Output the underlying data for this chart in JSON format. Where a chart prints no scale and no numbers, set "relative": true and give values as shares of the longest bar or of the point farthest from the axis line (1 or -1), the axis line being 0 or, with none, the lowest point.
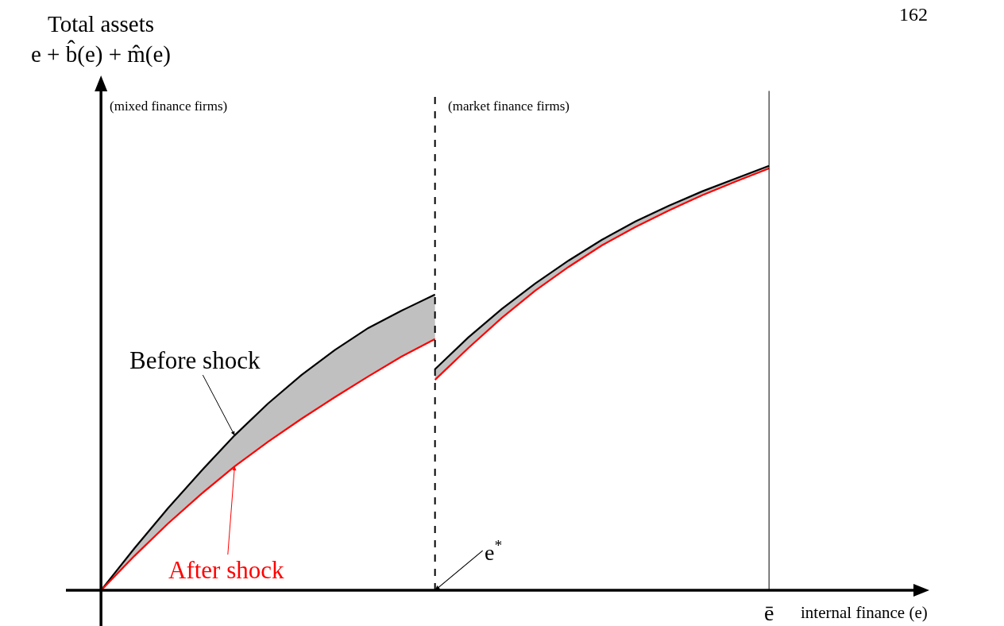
{
  "chart_data": {
    "type": "line",
    "relative": true,
    "ylabel": "Total assets\ne + b̂(e) + m̂(e)",
    "xlabel": "internal finance (e)",
    "categories": [
      null,
      null,
      null,
      null,
      null,
      null,
      null,
      null,
      null,
      null,
      null,
      null,
      null,
      null,
      null,
      null,
      null,
      null,
      null,
      null,
      null
    ],
    "legend": false,
    "marker": "none",
    "line_style": "solid",
    "series": [
      {
        "name": "Before shock",
        "color": "#000000",
        "values": [
          0,
          0.099,
          0.193,
          0.281,
          0.365,
          0.44,
          0.507,
          0.566,
          0.618,
          0.659,
          0.697,
          null,
          null,
          null,
          null,
          null,
          null,
          null,
          null,
          null,
          null
        ],
        "lower": [
          0,
          0.081,
          0.157,
          0.227,
          0.292,
          0.35,
          0.404,
          0.455,
          0.504,
          0.551,
          0.592,
          null,
          null,
          null,
          null,
          null,
          null,
          null,
          null,
          null,
          null
        ],
        "upper": [
          0,
          0.099,
          0.193,
          0.281,
          0.365,
          0.44,
          0.507,
          0.566,
          0.618,
          0.659,
          0.697,
          null,
          null,
          null,
          null,
          null,
          null,
          null,
          null,
          null,
          null
        ]
      },
      {
        "name": "After shock",
        "color": "#ff0000",
        "values": [
          0,
          0.081,
          0.157,
          0.227,
          0.292,
          0.35,
          0.404,
          0.455,
          0.504,
          0.551,
          0.592,
          null,
          null,
          null,
          null,
          null,
          null,
          null,
          null,
          null,
          null
        ]
      },
      {
        "color": "#000000",
        "values": [
          null,
          null,
          null,
          null,
          null,
          null,
          null,
          null,
          null,
          null,
          0.521,
          0.596,
          0.663,
          0.723,
          0.777,
          0.826,
          0.869,
          0.906,
          0.94,
          0.97,
          1
        ],
        "lower": [
          null,
          null,
          null,
          null,
          null,
          null,
          null,
          null,
          null,
          null,
          0.496,
          0.571,
          0.642,
          0.706,
          0.762,
          0.813,
          0.856,
          0.895,
          0.931,
          0.963,
          0.994
        ],
        "upper": [
          null,
          null,
          null,
          null,
          null,
          null,
          null,
          null,
          null,
          null,
          0.521,
          0.596,
          0.663,
          0.723,
          0.777,
          0.826,
          0.869,
          0.906,
          0.94,
          0.97,
          1
        ]
      },
      {
        "color": "#ff0000",
        "values": [
          null,
          null,
          null,
          null,
          null,
          null,
          null,
          null,
          null,
          null,
          0.496,
          0.571,
          0.642,
          0.706,
          0.762,
          0.813,
          0.856,
          0.895,
          0.931,
          0.963,
          0.994
        ]
      }
    ],
    "ref_lines": [
      {
        "axis": "x",
        "label": "e$^{*}$",
        "line_style": "dashed"
      },
      {
        "axis": "x",
        "label": "ē",
        "line_style": "solid"
      }
    ],
    "annotations": [
      "(mixed finance firms)",
      "(market finance firms)",
      "162"
    ]
  }
}
